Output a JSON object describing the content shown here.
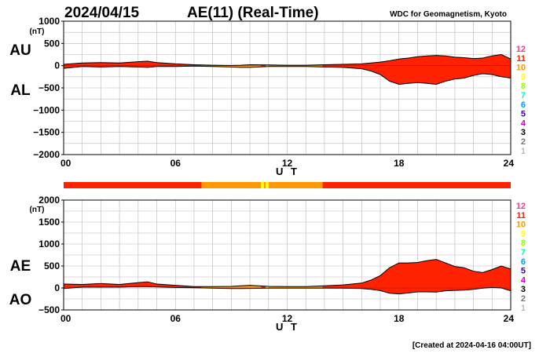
{
  "date": "2024/04/15",
  "title": "AE(11) (Real-Time)",
  "source": "WDC for Geomagnetism, Kyoto",
  "created": "[Created at 2024-04-16 04:00UT]",
  "xlabel": "U T",
  "legend_numbers": [
    "12",
    "11",
    "10",
    "9",
    "8",
    "7",
    "6",
    "5",
    "4",
    "3",
    "2",
    "1"
  ],
  "legend_colors": [
    "#ff3399",
    "#ff2200",
    "#ff9900",
    "#ffff00",
    "#99ff00",
    "#00ffaa",
    "#0099ff",
    "#3300cc",
    "#cc00cc",
    "#000000",
    "#777777",
    "#bbbbbb"
  ],
  "station_count_colors": {
    "11": "#ff2200",
    "10": "#ff9900",
    "9": "#ffff00"
  },
  "station_segments": [
    {
      "from": 0,
      "to": 7.4,
      "count": 11
    },
    {
      "from": 7.4,
      "to": 10.6,
      "count": 10
    },
    {
      "from": 10.6,
      "to": 10.75,
      "count": 9
    },
    {
      "from": 10.75,
      "to": 10.85,
      "count": 10
    },
    {
      "from": 10.85,
      "to": 11.0,
      "count": 9
    },
    {
      "from": 11.0,
      "to": 13.9,
      "count": 10
    },
    {
      "from": 13.9,
      "to": 24,
      "count": 11
    }
  ],
  "chart_data": [
    {
      "type": "area",
      "name": "AU/AL panel",
      "title": "",
      "labels": [
        "AU",
        "AL"
      ],
      "unit_label": "(nT)",
      "xlabel": "U T",
      "ylabel": "",
      "xlim": [
        0,
        24
      ],
      "ylim": [
        -2000,
        1000
      ],
      "x_ticks": [
        0,
        6,
        12,
        18,
        24
      ],
      "x_tick_labels": [
        "00",
        "06",
        "12",
        "18",
        "24"
      ],
      "y_ticks": [
        1000,
        500,
        0,
        -500,
        -1000,
        -1500,
        -2000
      ],
      "y_tick_labels": [
        "1000",
        "500",
        "0",
        "−500",
        "−1000",
        "−1500",
        "−2000"
      ],
      "grid": true,
      "x": [
        0,
        1,
        2,
        3,
        4,
        4.5,
        5,
        6,
        7,
        8,
        9,
        9.5,
        10,
        11,
        12,
        13,
        14,
        15,
        16,
        16.5,
        17,
        17.5,
        18,
        18.5,
        19,
        19.5,
        20,
        20.5,
        21,
        21.5,
        22,
        22.5,
        23,
        23.5,
        24
      ],
      "series": [
        {
          "name": "AU",
          "values": [
            30,
            60,
            70,
            60,
            90,
            100,
            70,
            40,
            20,
            10,
            5,
            10,
            20,
            15,
            10,
            10,
            20,
            30,
            40,
            60,
            80,
            110,
            150,
            170,
            200,
            220,
            230,
            220,
            190,
            180,
            160,
            170,
            220,
            250,
            150
          ]
        },
        {
          "name": "AL",
          "values": [
            -60,
            -20,
            -30,
            -20,
            -30,
            -40,
            -20,
            -20,
            -10,
            -20,
            -30,
            -40,
            -40,
            -20,
            -20,
            -20,
            -30,
            -40,
            -70,
            -120,
            -200,
            -350,
            -420,
            -400,
            -380,
            -400,
            -420,
            -350,
            -300,
            -280,
            -220,
            -180,
            -200,
            -250,
            -280
          ]
        }
      ]
    },
    {
      "type": "area",
      "name": "AE/AO panel",
      "title": "",
      "labels": [
        "AE",
        "AO"
      ],
      "unit_label": "(nT)",
      "xlabel": "U T",
      "ylabel": "",
      "xlim": [
        0,
        24
      ],
      "ylim": [
        -500,
        2000
      ],
      "x_ticks": [
        0,
        6,
        12,
        18,
        24
      ],
      "x_tick_labels": [
        "00",
        "06",
        "12",
        "18",
        "24"
      ],
      "y_ticks": [
        2000,
        1500,
        1000,
        500,
        0,
        -500
      ],
      "y_tick_labels": [
        "2000",
        "1500",
        "1000",
        "500",
        "0",
        "−500"
      ],
      "grid": true,
      "x": [
        0,
        1,
        2,
        3,
        4,
        4.5,
        5,
        6,
        7,
        8,
        9,
        9.5,
        10,
        11,
        12,
        13,
        14,
        15,
        16,
        16.5,
        17,
        17.5,
        18,
        18.5,
        19,
        19.5,
        20,
        20.5,
        21,
        21.5,
        22,
        22.5,
        23,
        23.5,
        24
      ],
      "series": [
        {
          "name": "AE",
          "values": [
            90,
            80,
            100,
            80,
            120,
            140,
            90,
            60,
            30,
            30,
            35,
            50,
            60,
            35,
            30,
            30,
            50,
            70,
            110,
            180,
            280,
            460,
            570,
            570,
            580,
            620,
            650,
            570,
            490,
            460,
            380,
            350,
            420,
            500,
            430
          ]
        },
        {
          "name": "AO",
          "values": [
            -15,
            20,
            20,
            20,
            30,
            30,
            25,
            10,
            5,
            -5,
            -12,
            -15,
            -10,
            -3,
            -5,
            -5,
            -5,
            -5,
            -15,
            -30,
            -60,
            -120,
            -135,
            -115,
            -90,
            -90,
            -95,
            -65,
            -55,
            -50,
            -30,
            -5,
            10,
            0,
            -65
          ]
        }
      ]
    }
  ]
}
